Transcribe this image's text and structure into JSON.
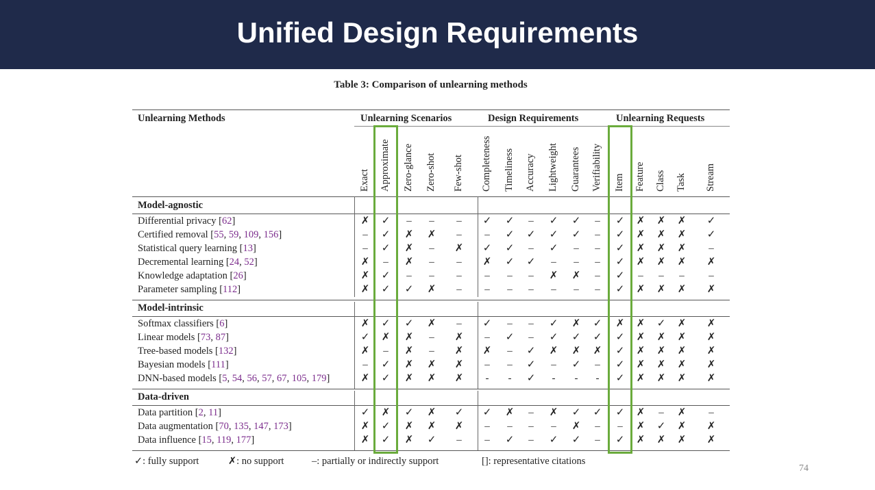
{
  "slide": {
    "title": "Unified Design Requirements",
    "page_number": "74"
  },
  "table": {
    "caption": "Table 3: Comparison of unlearning methods",
    "method_header": "Unlearning Methods",
    "groups": [
      {
        "label": "Unlearning Scenarios",
        "columns": [
          "Exact",
          "Approximate",
          "Zero-glance",
          "Zero-shot",
          "Few-shot"
        ]
      },
      {
        "label": "Design Requirements",
        "columns": [
          "Completeness",
          "Timeliness",
          "Accuracy",
          "Lightweight",
          "Guarantees",
          "Verifiability"
        ]
      },
      {
        "label": "Unlearning Requests",
        "columns": [
          "Item",
          "Feature",
          "Class",
          "Task",
          "Stream"
        ]
      }
    ],
    "highlighted_columns": [
      "Approximate",
      "Item"
    ],
    "highlight_color": "#6aab3c",
    "sections": [
      {
        "label": "Model-agnostic",
        "rows": [
          {
            "name": "Differential privacy",
            "cites": [
              "62"
            ],
            "values": [
              "✗",
              "✓",
              "–",
              "–",
              "–",
              "✓",
              "✓",
              "–",
              "✓",
              "✓",
              "–",
              "✓",
              "✗",
              "✗",
              "✗",
              "✓"
            ]
          },
          {
            "name": "Certified removal",
            "cites": [
              "55",
              "59",
              "109",
              "156"
            ],
            "values": [
              "–",
              "✓",
              "✗",
              "✗",
              "–",
              "–",
              "✓",
              "✓",
              "✓",
              "✓",
              "–",
              "✓",
              "✗",
              "✗",
              "✗",
              "✓"
            ]
          },
          {
            "name": "Statistical query learning",
            "cites": [
              "13"
            ],
            "values": [
              "–",
              "✓",
              "✗",
              "–",
              "✗",
              "✓",
              "✓",
              "–",
              "✓",
              "–",
              "–",
              "✓",
              "✗",
              "✗",
              "✗",
              "–"
            ]
          },
          {
            "name": "Decremental learning",
            "cites": [
              "24",
              "52"
            ],
            "values": [
              "✗",
              "–",
              "✗",
              "–",
              "–",
              "✗",
              "✓",
              "✓",
              "–",
              "–",
              "–",
              "✓",
              "✗",
              "✗",
              "✗",
              "✗"
            ]
          },
          {
            "name": "Knowledge adaptation",
            "cites": [
              "26"
            ],
            "values": [
              "✗",
              "✓",
              "–",
              "–",
              "–",
              "–",
              "–",
              "–",
              "✗",
              "✗",
              "–",
              "✓",
              "–",
              "–",
              "–",
              "–"
            ]
          },
          {
            "name": "Parameter sampling",
            "cites": [
              "112"
            ],
            "values": [
              "✗",
              "✓",
              "✓",
              "✗",
              "–",
              "–",
              "–",
              "–",
              "–",
              "–",
              "–",
              "✓",
              "✗",
              "✗",
              "✗",
              "✗"
            ]
          }
        ]
      },
      {
        "label": "Model-intrinsic",
        "rows": [
          {
            "name": "Softmax classifiers",
            "cites": [
              "6"
            ],
            "values": [
              "✗",
              "✓",
              "✓",
              "✗",
              "–",
              "✓",
              "–",
              "–",
              "✓",
              "✗",
              "✓",
              "✗",
              "✗",
              "✓",
              "✗",
              "✗"
            ]
          },
          {
            "name": "Linear models",
            "cites": [
              "73",
              "87"
            ],
            "values": [
              "✓",
              "✗",
              "✗",
              "–",
              "✗",
              "–",
              "✓",
              "–",
              "✓",
              "✓",
              "✓",
              "✓",
              "✗",
              "✗",
              "✗",
              "✗"
            ]
          },
          {
            "name": "Tree-based models",
            "cites": [
              "132"
            ],
            "values": [
              "✗",
              "–",
              "✗",
              "–",
              "✗",
              "✗",
              "–",
              "✓",
              "✗",
              "✗",
              "✗",
              "✓",
              "✗",
              "✗",
              "✗",
              "✗"
            ]
          },
          {
            "name": "Bayesian models",
            "cites": [
              "111"
            ],
            "values": [
              "–",
              "✓",
              "✗",
              "✗",
              "✗",
              "–",
              "–",
              "✓",
              "–",
              "✓",
              "–",
              "✓",
              "✗",
              "✗",
              "✗",
              "✗"
            ]
          },
          {
            "name": "DNN-based models",
            "cites": [
              "5",
              "54",
              "56",
              "57",
              "67",
              "105",
              "179"
            ],
            "values": [
              "✗",
              "✓",
              "✗",
              "✗",
              "✗",
              "-",
              "-",
              "✓",
              "-",
              "-",
              "-",
              "✓",
              "✗",
              "✗",
              "✗",
              "✗"
            ]
          }
        ]
      },
      {
        "label": "Data-driven",
        "rows": [
          {
            "name": "Data partition",
            "cites": [
              "2",
              "11"
            ],
            "values": [
              "✓",
              "✗",
              "✓",
              "✗",
              "✓",
              "✓",
              "✗",
              "–",
              "✗",
              "✓",
              "✓",
              "✓",
              "✗",
              "–",
              "✗",
              "–"
            ]
          },
          {
            "name": "Data augmentation",
            "cites": [
              "70",
              "135",
              "147",
              "173"
            ],
            "values": [
              "✗",
              "✓",
              "✗",
              "✗",
              "✗",
              "–",
              "–",
              "–",
              "–",
              "✗",
              "–",
              "–",
              "✗",
              "✓",
              "✗",
              "✗"
            ]
          },
          {
            "name": "Data influence",
            "cites": [
              "15",
              "119",
              "177"
            ],
            "values": [
              "✗",
              "✓",
              "✗",
              "✓",
              "–",
              "–",
              "✓",
              "–",
              "✓",
              "✓",
              "–",
              "✓",
              "✗",
              "✗",
              "✗",
              "✗"
            ]
          }
        ]
      }
    ],
    "legend": [
      "✓: fully support",
      "✗: no support",
      "–: partially or indirectly support",
      "[]: representative citations"
    ]
  }
}
